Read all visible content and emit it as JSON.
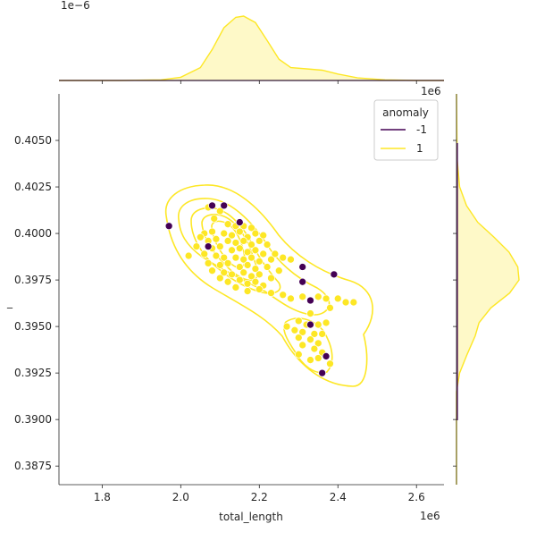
{
  "chart_data": {
    "type": "scatter",
    "title": "",
    "xlabel": "total_length",
    "ylabel": "_",
    "x_offset_label": "1e6",
    "y_offset_label": "1e6",
    "top_marginal_offset_label": "1e−6",
    "xlim": [
      1.69,
      2.67
    ],
    "ylim": [
      0.3865,
      0.4075
    ],
    "x_ticks": [
      1.8,
      2.0,
      2.2,
      2.4,
      2.6
    ],
    "x_tick_labels": [
      "1.8",
      "2.0",
      "2.2",
      "2.4",
      "2.6"
    ],
    "y_ticks": [
      0.3875,
      0.39,
      0.3925,
      0.395,
      0.3975,
      0.4,
      0.4025,
      0.405
    ],
    "y_tick_labels": [
      "0.3875",
      "0.3900",
      "0.3925",
      "0.3950",
      "0.3975",
      "0.4000",
      "0.4025",
      "0.4050"
    ],
    "grid": false,
    "legend": {
      "title": "anomaly",
      "position": "top-right",
      "entries": [
        {
          "label": "-1",
          "color": "#440154"
        },
        {
          "label": "1",
          "color": "#fde725"
        }
      ]
    },
    "series": [
      {
        "name": "1",
        "color": "#fde725",
        "points": [
          [
            2.07,
            0.4014
          ],
          [
            2.1,
            0.4012
          ],
          [
            2.085,
            0.4008
          ],
          [
            2.12,
            0.4005
          ],
          [
            2.14,
            0.4004
          ],
          [
            2.16,
            0.4004
          ],
          [
            2.18,
            0.4003
          ],
          [
            2.06,
            0.4
          ],
          [
            2.08,
            0.4001
          ],
          [
            2.11,
            0.4
          ],
          [
            2.13,
            0.3999
          ],
          [
            2.15,
            0.4001
          ],
          [
            2.17,
            0.3998
          ],
          [
            2.19,
            0.4
          ],
          [
            2.21,
            0.3999
          ],
          [
            2.05,
            0.3998
          ],
          [
            2.07,
            0.3996
          ],
          [
            2.09,
            0.3997
          ],
          [
            2.12,
            0.3996
          ],
          [
            2.14,
            0.3995
          ],
          [
            2.16,
            0.3996
          ],
          [
            2.18,
            0.3994
          ],
          [
            2.2,
            0.3996
          ],
          [
            2.22,
            0.3994
          ],
          [
            2.04,
            0.3993
          ],
          [
            2.08,
            0.3992
          ],
          [
            2.1,
            0.3993
          ],
          [
            2.13,
            0.3991
          ],
          [
            2.15,
            0.3992
          ],
          [
            2.17,
            0.399
          ],
          [
            2.19,
            0.3991
          ],
          [
            2.21,
            0.3989
          ],
          [
            2.24,
            0.3989
          ],
          [
            2.02,
            0.3988
          ],
          [
            2.06,
            0.3989
          ],
          [
            2.09,
            0.3988
          ],
          [
            2.11,
            0.3987
          ],
          [
            2.14,
            0.3987
          ],
          [
            2.16,
            0.3986
          ],
          [
            2.18,
            0.3987
          ],
          [
            2.2,
            0.3985
          ],
          [
            2.23,
            0.3986
          ],
          [
            2.26,
            0.3987
          ],
          [
            2.28,
            0.3986
          ],
          [
            2.07,
            0.3984
          ],
          [
            2.1,
            0.3983
          ],
          [
            2.12,
            0.3984
          ],
          [
            2.15,
            0.3982
          ],
          [
            2.17,
            0.3983
          ],
          [
            2.19,
            0.3981
          ],
          [
            2.22,
            0.3982
          ],
          [
            2.25,
            0.398
          ],
          [
            2.08,
            0.398
          ],
          [
            2.11,
            0.3979
          ],
          [
            2.13,
            0.3978
          ],
          [
            2.16,
            0.3979
          ],
          [
            2.18,
            0.3977
          ],
          [
            2.2,
            0.3978
          ],
          [
            2.23,
            0.3976
          ],
          [
            2.1,
            0.3976
          ],
          [
            2.12,
            0.3974
          ],
          [
            2.15,
            0.3975
          ],
          [
            2.17,
            0.3973
          ],
          [
            2.19,
            0.3974
          ],
          [
            2.21,
            0.3972
          ],
          [
            2.14,
            0.3971
          ],
          [
            2.17,
            0.3969
          ],
          [
            2.2,
            0.397
          ],
          [
            2.23,
            0.3968
          ],
          [
            2.26,
            0.3967
          ],
          [
            2.28,
            0.3965
          ],
          [
            2.31,
            0.3966
          ],
          [
            2.35,
            0.3966
          ],
          [
            2.37,
            0.3965
          ],
          [
            2.4,
            0.3965
          ],
          [
            2.42,
            0.3963
          ],
          [
            2.44,
            0.3963
          ],
          [
            2.38,
            0.396
          ],
          [
            2.33,
            0.3957
          ],
          [
            2.3,
            0.3953
          ],
          [
            2.32,
            0.3951
          ],
          [
            2.35,
            0.3951
          ],
          [
            2.37,
            0.3952
          ],
          [
            2.27,
            0.395
          ],
          [
            2.29,
            0.3948
          ],
          [
            2.31,
            0.3947
          ],
          [
            2.34,
            0.3946
          ],
          [
            2.36,
            0.3946
          ],
          [
            2.3,
            0.3944
          ],
          [
            2.33,
            0.3943
          ],
          [
            2.35,
            0.3941
          ],
          [
            2.31,
            0.394
          ],
          [
            2.34,
            0.3938
          ],
          [
            2.36,
            0.3936
          ],
          [
            2.3,
            0.3935
          ],
          [
            2.33,
            0.3932
          ],
          [
            2.35,
            0.3933
          ],
          [
            2.38,
            0.393
          ]
        ]
      },
      {
        "name": "-1",
        "color": "#440154",
        "points": [
          [
            1.97,
            0.4004
          ],
          [
            2.08,
            0.4015
          ],
          [
            2.11,
            0.4015
          ],
          [
            2.15,
            0.4006
          ],
          [
            2.07,
            0.3993
          ],
          [
            2.31,
            0.3982
          ],
          [
            2.39,
            0.3978
          ],
          [
            2.31,
            0.3974
          ],
          [
            2.33,
            0.3964
          ],
          [
            2.33,
            0.3951
          ],
          [
            2.37,
            0.3934
          ],
          [
            2.36,
            0.3925
          ]
        ]
      }
    ],
    "marginal_x_density": {
      "x": [
        1.69,
        1.85,
        1.95,
        2.0,
        2.05,
        2.08,
        2.11,
        2.14,
        2.16,
        2.19,
        2.22,
        2.25,
        2.28,
        2.32,
        2.36,
        2.4,
        2.45,
        2.52,
        2.6,
        2.67
      ],
      "y": [
        0,
        0,
        0.01,
        0.05,
        0.2,
        0.48,
        0.82,
        0.98,
        1.0,
        0.9,
        0.62,
        0.33,
        0.2,
        0.18,
        0.16,
        0.1,
        0.04,
        0.01,
        0,
        0
      ]
    },
    "marginal_y_density": {
      "y": [
        0.3865,
        0.3915,
        0.3925,
        0.3935,
        0.3945,
        0.3952,
        0.396,
        0.3968,
        0.3975,
        0.3982,
        0.399,
        0.3998,
        0.4006,
        0.4015,
        0.4025,
        0.404,
        0.4075
      ],
      "d": [
        0,
        0,
        0.05,
        0.17,
        0.3,
        0.36,
        0.55,
        0.85,
        1.0,
        0.98,
        0.84,
        0.6,
        0.34,
        0.16,
        0.05,
        0.01,
        0
      ]
    }
  }
}
